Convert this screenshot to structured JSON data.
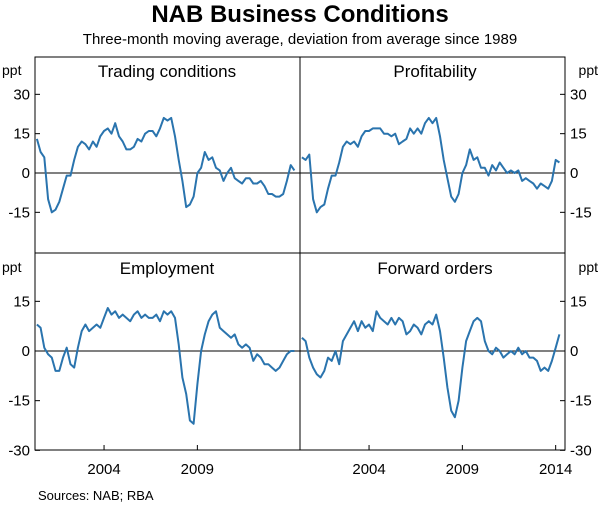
{
  "title": "NAB Business Conditions",
  "subtitle": "Three-month moving average, deviation from average since 1989",
  "source": "Sources:   NAB; RBA",
  "colors": {
    "line": "#2a74ae",
    "frame": "#000000",
    "zero": "#000000"
  },
  "chart_data": {
    "type": "line",
    "units": "ppt",
    "x_ticks": [
      2004,
      2009,
      2014
    ],
    "xlim": [
      2000.3,
      2014.5
    ],
    "top_row": {
      "ylim": [
        -30,
        30
      ],
      "yticks": [
        30,
        15,
        0,
        -15
      ]
    },
    "bottom_row": {
      "ylim": [
        -30,
        30
      ],
      "yticks": [
        15,
        0,
        -15,
        -30
      ]
    },
    "panels": [
      {
        "name": "Trading conditions",
        "x": [
          2000.4,
          2000.6,
          2000.8,
          2001.0,
          2001.2,
          2001.4,
          2001.6,
          2001.8,
          2002.0,
          2002.2,
          2002.4,
          2002.6,
          2002.8,
          2003.0,
          2003.2,
          2003.4,
          2003.6,
          2003.8,
          2004.0,
          2004.2,
          2004.4,
          2004.6,
          2004.8,
          2005.0,
          2005.2,
          2005.4,
          2005.6,
          2005.8,
          2006.0,
          2006.2,
          2006.4,
          2006.6,
          2006.8,
          2007.0,
          2007.2,
          2007.4,
          2007.6,
          2007.8,
          2008.0,
          2008.2,
          2008.4,
          2008.6,
          2008.8,
          2009.0,
          2009.2,
          2009.4,
          2009.6,
          2009.8,
          2010.0,
          2010.2,
          2010.4,
          2010.6,
          2010.8,
          2011.0,
          2011.2,
          2011.4,
          2011.6,
          2011.8,
          2012.0,
          2012.2,
          2012.4,
          2012.6,
          2012.8,
          2013.0,
          2013.2,
          2013.4,
          2013.6,
          2013.8,
          2014.0,
          2014.2
        ],
        "y": [
          13,
          8,
          6,
          -10,
          -15,
          -14,
          -11,
          -6,
          -1,
          -1,
          5,
          10,
          12,
          11,
          9,
          12,
          10,
          14,
          16,
          17,
          15,
          19,
          14,
          12,
          9,
          9,
          10,
          13,
          12,
          15,
          16,
          16,
          14,
          17,
          21,
          20,
          21,
          14,
          5,
          -3,
          -13,
          -12,
          -9,
          0,
          2,
          8,
          5,
          6,
          2,
          1,
          -3,
          0,
          2,
          -2,
          -3,
          -4,
          -2,
          -2,
          -4,
          -4,
          -3,
          -5,
          -8,
          -8,
          -9,
          -9,
          -8,
          -3,
          3,
          1
        ]
      },
      {
        "name": "Profitability",
        "x": [
          2000.4,
          2000.6,
          2000.8,
          2001.0,
          2001.2,
          2001.4,
          2001.6,
          2001.8,
          2002.0,
          2002.2,
          2002.4,
          2002.6,
          2002.8,
          2003.0,
          2003.2,
          2003.4,
          2003.6,
          2003.8,
          2004.0,
          2004.2,
          2004.4,
          2004.6,
          2004.8,
          2005.0,
          2005.2,
          2005.4,
          2005.6,
          2005.8,
          2006.0,
          2006.2,
          2006.4,
          2006.6,
          2006.8,
          2007.0,
          2007.2,
          2007.4,
          2007.6,
          2007.8,
          2008.0,
          2008.2,
          2008.4,
          2008.6,
          2008.8,
          2009.0,
          2009.2,
          2009.4,
          2009.6,
          2009.8,
          2010.0,
          2010.2,
          2010.4,
          2010.6,
          2010.8,
          2011.0,
          2011.2,
          2011.4,
          2011.6,
          2011.8,
          2012.0,
          2012.2,
          2012.4,
          2012.6,
          2012.8,
          2013.0,
          2013.2,
          2013.4,
          2013.6,
          2013.8,
          2014.0,
          2014.2
        ],
        "y": [
          6,
          5,
          7,
          -10,
          -15,
          -13,
          -12,
          -6,
          -1,
          -1,
          4,
          10,
          12,
          11,
          12,
          10,
          14,
          16,
          16,
          17,
          17,
          17,
          15,
          15,
          14,
          15,
          11,
          12,
          13,
          17,
          15,
          17,
          15,
          19,
          21,
          19,
          21,
          14,
          5,
          -2,
          -9,
          -11,
          -8,
          0,
          3,
          9,
          5,
          6,
          2,
          2,
          -1,
          3,
          1,
          4,
          2,
          0,
          1,
          0,
          1,
          -3,
          -2,
          -3,
          -4,
          -6,
          -4,
          -5,
          -6,
          -3,
          5,
          4
        ]
      },
      {
        "name": "Employment",
        "x": [
          2000.4,
          2000.6,
          2000.8,
          2001.0,
          2001.2,
          2001.4,
          2001.6,
          2001.8,
          2002.0,
          2002.2,
          2002.4,
          2002.6,
          2002.8,
          2003.0,
          2003.2,
          2003.4,
          2003.6,
          2003.8,
          2004.0,
          2004.2,
          2004.4,
          2004.6,
          2004.8,
          2005.0,
          2005.2,
          2005.4,
          2005.6,
          2005.8,
          2006.0,
          2006.2,
          2006.4,
          2006.6,
          2006.8,
          2007.0,
          2007.2,
          2007.4,
          2007.6,
          2007.8,
          2008.0,
          2008.2,
          2008.4,
          2008.6,
          2008.8,
          2009.0,
          2009.2,
          2009.4,
          2009.6,
          2009.8,
          2010.0,
          2010.2,
          2010.4,
          2010.6,
          2010.8,
          2011.0,
          2011.2,
          2011.4,
          2011.6,
          2011.8,
          2012.0,
          2012.2,
          2012.4,
          2012.6,
          2012.8,
          2013.0,
          2013.2,
          2013.4,
          2013.6,
          2013.8,
          2014.0,
          2014.2
        ],
        "y": [
          8,
          7,
          1,
          -1,
          -2,
          -6,
          -6,
          -2,
          1,
          -4,
          -5,
          1,
          6,
          8,
          6,
          7,
          8,
          7,
          10,
          13,
          11,
          12,
          10,
          11,
          10,
          9,
          11,
          12,
          10,
          11,
          10,
          10,
          11,
          9,
          12,
          11,
          12,
          10,
          2,
          -8,
          -13,
          -21,
          -22,
          -10,
          0,
          5,
          9,
          11,
          12,
          7,
          6,
          5,
          4,
          5,
          2,
          1,
          2,
          1,
          -3,
          -1,
          -2,
          -4,
          -4,
          -5,
          -6,
          -5,
          -3,
          -1,
          0,
          0
        ]
      },
      {
        "name": "Forward orders",
        "x": [
          2000.4,
          2000.6,
          2000.8,
          2001.0,
          2001.2,
          2001.4,
          2001.6,
          2001.8,
          2002.0,
          2002.2,
          2002.4,
          2002.6,
          2002.8,
          2003.0,
          2003.2,
          2003.4,
          2003.6,
          2003.8,
          2004.0,
          2004.2,
          2004.4,
          2004.6,
          2004.8,
          2005.0,
          2005.2,
          2005.4,
          2005.6,
          2005.8,
          2006.0,
          2006.2,
          2006.4,
          2006.6,
          2006.8,
          2007.0,
          2007.2,
          2007.4,
          2007.6,
          2007.8,
          2008.0,
          2008.2,
          2008.4,
          2008.6,
          2008.8,
          2009.0,
          2009.2,
          2009.4,
          2009.6,
          2009.8,
          2010.0,
          2010.2,
          2010.4,
          2010.6,
          2010.8,
          2011.0,
          2011.2,
          2011.4,
          2011.6,
          2011.8,
          2012.0,
          2012.2,
          2012.4,
          2012.6,
          2012.8,
          2013.0,
          2013.2,
          2013.4,
          2013.6,
          2013.8,
          2014.0,
          2014.2
        ],
        "y": [
          4,
          3,
          -2,
          -5,
          -7,
          -8,
          -6,
          -2,
          -3,
          0,
          -4,
          3,
          5,
          7,
          9,
          6,
          9,
          7,
          8,
          6,
          12,
          10,
          9,
          8,
          10,
          8,
          10,
          9,
          5,
          6,
          8,
          7,
          5,
          8,
          9,
          8,
          11,
          6,
          -2,
          -11,
          -18,
          -20,
          -15,
          -5,
          3,
          6,
          9,
          10,
          9,
          3,
          0,
          -1,
          1,
          0,
          -2,
          -1,
          0,
          -1,
          1,
          -1,
          0,
          -2,
          -2,
          -3,
          -6,
          -5,
          -6,
          -3,
          1,
          5
        ]
      }
    ]
  }
}
